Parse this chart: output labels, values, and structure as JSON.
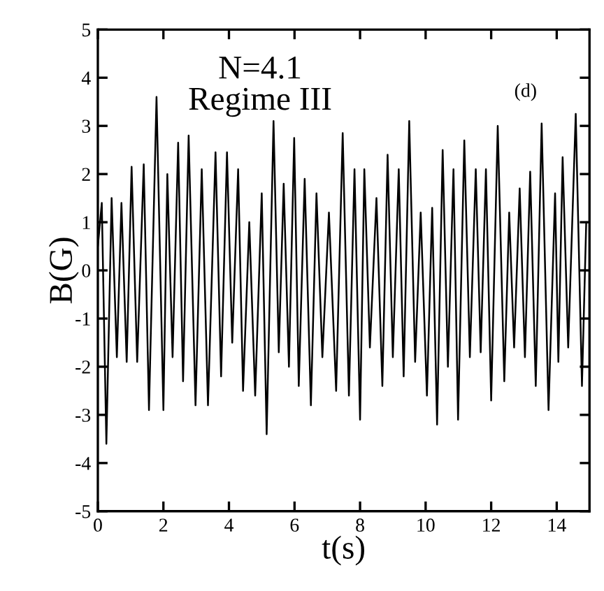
{
  "chart_data": {
    "type": "line",
    "xlabel": "t(s)",
    "ylabel": "B(G)",
    "annotations": [
      "N=4.1",
      "Regime III",
      "(d)"
    ],
    "x": [
      0,
      0.12,
      0.26,
      0.42,
      0.58,
      0.72,
      0.88,
      1.03,
      1.2,
      1.4,
      1.56,
      1.79,
      2.0,
      2.12,
      2.28,
      2.45,
      2.6,
      2.77,
      2.98,
      3.17,
      3.36,
      3.59,
      3.76,
      3.94,
      4.1,
      4.28,
      4.43,
      4.62,
      4.8,
      5.0,
      5.15,
      5.36,
      5.52,
      5.67,
      5.83,
      5.99,
      6.13,
      6.31,
      6.5,
      6.67,
      6.85,
      7.05,
      7.27,
      7.47,
      7.66,
      7.83,
      8.0,
      8.13,
      8.3,
      8.5,
      8.68,
      8.84,
      9.0,
      9.18,
      9.33,
      9.5,
      9.68,
      9.85,
      10.04,
      10.2,
      10.35,
      10.52,
      10.68,
      10.85,
      10.99,
      11.18,
      11.35,
      11.53,
      11.68,
      11.84,
      12.0,
      12.2,
      12.4,
      12.55,
      12.7,
      12.87,
      13.03,
      13.19,
      13.36,
      13.54,
      13.75,
      13.95,
      14.05,
      14.18,
      14.35,
      14.58,
      14.77,
      14.9
    ],
    "series": [
      {
        "color": "#000000",
        "values": [
          0.5,
          1.4,
          -3.6,
          1.5,
          -1.8,
          1.4,
          -1.9,
          2.15,
          -1.9,
          2.2,
          -2.9,
          3.6,
          -2.9,
          2.0,
          -1.8,
          2.65,
          -2.3,
          2.8,
          -2.8,
          2.1,
          -2.8,
          2.45,
          -2.2,
          2.45,
          -1.5,
          2.1,
          -2.5,
          1.0,
          -2.6,
          1.6,
          -3.4,
          3.1,
          -1.7,
          1.8,
          -2.0,
          2.75,
          -2.4,
          1.9,
          -2.8,
          1.6,
          -1.8,
          1.2,
          -2.5,
          2.85,
          -2.6,
          2.1,
          -3.1,
          2.1,
          -1.6,
          1.5,
          -2.4,
          2.4,
          -1.8,
          2.1,
          -2.2,
          3.1,
          -1.9,
          1.2,
          -2.6,
          1.3,
          -3.2,
          2.5,
          -2.0,
          2.1,
          -3.1,
          2.7,
          -1.8,
          2.1,
          -1.7,
          2.1,
          -2.7,
          3.0,
          -2.3,
          1.2,
          -1.6,
          1.7,
          -1.8,
          2.05,
          -2.4,
          3.05,
          -2.9,
          1.6,
          -1.9,
          2.35,
          -1.6,
          3.25,
          -2.4,
          1.0
        ]
      }
    ],
    "xlim": [
      0,
      15
    ],
    "xticks": [
      0,
      2,
      4,
      6,
      8,
      10,
      12,
      14
    ],
    "ylim": [
      -5,
      5
    ],
    "yticks": [
      -5,
      -4,
      -3,
      -2,
      -1,
      0,
      1,
      2,
      3,
      4,
      5
    ],
    "grid": false,
    "legend": false,
    "marker": "none",
    "line_style": "solid"
  }
}
